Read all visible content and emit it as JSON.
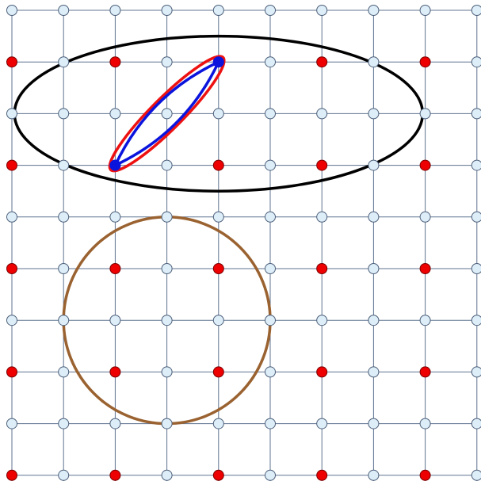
{
  "diagram": {
    "grid": {
      "cols": 10,
      "rows": 10
    },
    "colors": {
      "grid_line": "#5f7390",
      "node_fill": "#deeef9",
      "node_stroke": "#4c5f79",
      "highlight_fill": "#ee0000",
      "highlight_stroke": "#7a0000",
      "large_ellipse": "#000000",
      "small_ellipse": "#ee1111",
      "blue_loop": "#0a14dd",
      "circle": "#9a6230"
    },
    "highlighted_nodes": [
      [
        0,
        1
      ],
      [
        2,
        1
      ],
      [
        6,
        1
      ],
      [
        8,
        1
      ],
      [
        0,
        3
      ],
      [
        2,
        3
      ],
      [
        4,
        3
      ],
      [
        6,
        3
      ],
      [
        8,
        3
      ],
      [
        0,
        5
      ],
      [
        2,
        5
      ],
      [
        4,
        5
      ],
      [
        6,
        5
      ],
      [
        8,
        5
      ],
      [
        0,
        7
      ],
      [
        2,
        7
      ],
      [
        4,
        7
      ],
      [
        6,
        7
      ],
      [
        8,
        7
      ],
      [
        0,
        9
      ],
      [
        2,
        9
      ],
      [
        4,
        9
      ],
      [
        6,
        9
      ],
      [
        8,
        9
      ]
    ],
    "filled_nodes": [
      [
        4,
        1
      ],
      [
        2,
        3
      ]
    ],
    "shapes": [
      {
        "kind": "large-ellipse",
        "center": [
          4,
          2
        ],
        "radii": [
          3.95,
          1.5
        ]
      },
      {
        "kind": "small-ellipse",
        "from": [
          2,
          3
        ],
        "to": [
          4,
          1
        ],
        "half_width": 0.3
      },
      {
        "kind": "blue-loop",
        "from": [
          2,
          3
        ],
        "to": [
          4,
          1
        ],
        "bulge": 0.09
      },
      {
        "kind": "circle",
        "center": [
          3,
          6
        ],
        "radius": 2
      }
    ]
  }
}
